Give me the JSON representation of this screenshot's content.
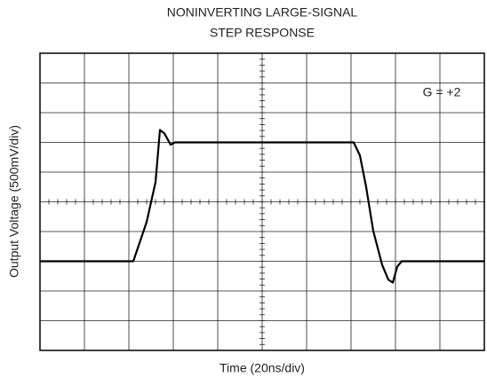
{
  "chart_data": {
    "type": "line",
    "title": [
      "NONINVERTING LARGE-SIGNAL",
      "STEP RESPONSE"
    ],
    "xlabel": "Time (20ns/div)",
    "ylabel": "Output Voltage (500mV/div)",
    "annotation": "G = +2",
    "color": "#000000",
    "x": [
      0,
      42,
      48,
      52,
      54,
      56,
      58.8,
      60.8,
      141.2,
      144,
      146.8,
      150,
      154,
      156.8,
      158.8,
      160.8,
      162.8,
      200
    ],
    "values": [
      -1.0,
      -1.0,
      -0.34,
      0.33,
      1.21,
      1.15,
      0.96,
      1.0,
      1.0,
      0.78,
      0.25,
      -0.49,
      -1.06,
      -1.31,
      -1.36,
      -1.09,
      -1.0,
      -1.0
    ],
    "xlim": [
      0,
      200
    ],
    "xticks": [
      0,
      20,
      40,
      60,
      80,
      100,
      120,
      140,
      160,
      180,
      200
    ],
    "ylim": [
      -2.5,
      2.5
    ],
    "yticks": [
      -2.5,
      -2,
      -1.5,
      -1,
      -0.5,
      0,
      0.5,
      1,
      1.5,
      2,
      2.5
    ],
    "grid": true
  }
}
